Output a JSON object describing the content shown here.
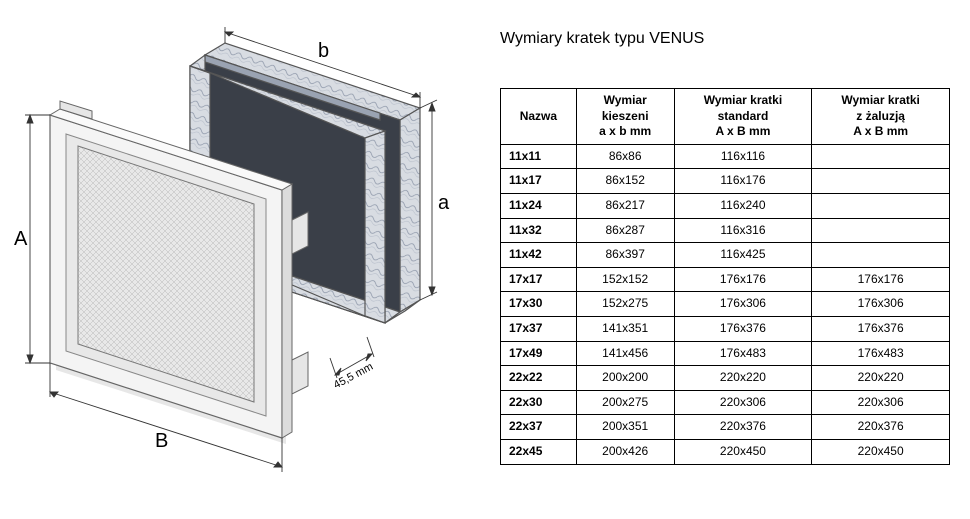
{
  "title": "Wymiary kratek typu VENUS",
  "diagram": {
    "labels": {
      "A": "A",
      "B": "B",
      "a": "a",
      "b": "b"
    },
    "depth_label": "45,5 mm",
    "colors": {
      "stroke": "#555555",
      "dimension_line": "#333333",
      "zinc_light": "#d8dce2",
      "zinc_mid": "#a8b0bd",
      "zinc_dark": "#7a8495",
      "grille_face": "#f0f0f0",
      "mesh": "#bfbfbf",
      "background": "#ffffff"
    }
  },
  "table": {
    "columns": [
      "Nazwa",
      "Wymiar\nkieszeni\na x b mm",
      "Wymiar kratki\nstandard\nA x B mm",
      "Wymiar kratki\nz żaluzją\nA x B mm"
    ],
    "rows": [
      [
        "11x11",
        "86x86",
        "116x116",
        ""
      ],
      [
        "11x17",
        "86x152",
        "116x176",
        ""
      ],
      [
        "11x24",
        "86x217",
        "116x240",
        ""
      ],
      [
        "11x32",
        "86x287",
        "116x316",
        ""
      ],
      [
        "11x42",
        "86x397",
        "116x425",
        ""
      ],
      [
        "17x17",
        "152x152",
        "176x176",
        "176x176"
      ],
      [
        "17x30",
        "152x275",
        "176x306",
        "176x306"
      ],
      [
        "17x37",
        "141x351",
        "176x376",
        "176x376"
      ],
      [
        "17x49",
        "141x456",
        "176x483",
        "176x483"
      ],
      [
        "22x22",
        "200x200",
        "220x220",
        "220x220"
      ],
      [
        "22x30",
        "200x275",
        "220x306",
        "220x306"
      ],
      [
        "22x37",
        "200x351",
        "220x376",
        "220x376"
      ],
      [
        "22x45",
        "200x426",
        "220x450",
        "220x450"
      ]
    ]
  }
}
